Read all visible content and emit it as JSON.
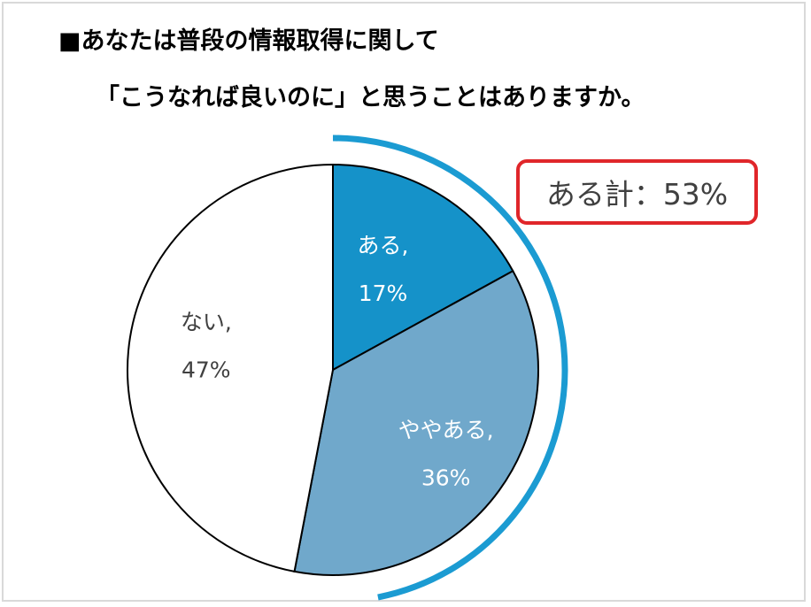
{
  "title_line1": "■あなたは普段の情報取得に関して",
  "title_line2": "「こうなれば良いのに」と思うことはありますか。",
  "callout": {
    "text": "ある計：53%"
  },
  "colors": {
    "aru": "#1592c9",
    "yaya_aru": "#70a8cb",
    "nai": "#ffffff",
    "outline": "#000000",
    "arc": "#1b9bd2",
    "callout_border": "#e0262a"
  },
  "chart_data": {
    "type": "pie",
    "title": "■あなたは普段の情報取得に関して 「こうなれば良いのに」と思うことはありますか。",
    "categories": [
      "ある",
      "ややある",
      "ない"
    ],
    "values": [
      17,
      36,
      47
    ],
    "unit": "%",
    "data_labels": [
      {
        "name": "ある,",
        "value": "17%"
      },
      {
        "name": "ややある,",
        "value": "36%"
      },
      {
        "name": "ない,",
        "value": "47%"
      }
    ],
    "annotation": "ある計：53%",
    "legend": "none"
  }
}
